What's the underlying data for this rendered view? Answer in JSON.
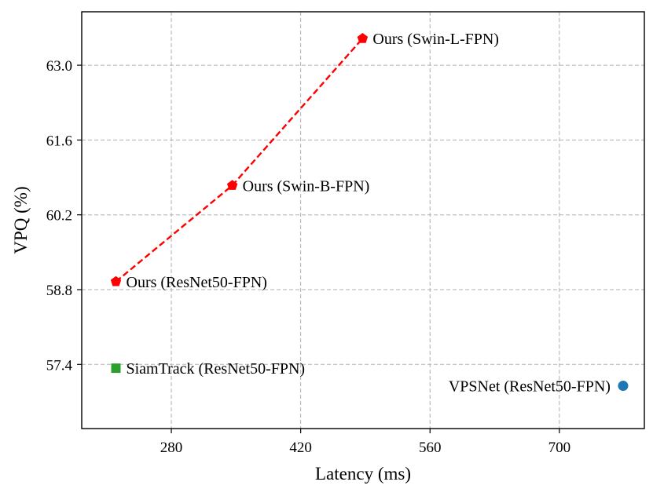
{
  "chart_data": {
    "type": "scatter",
    "xlabel": "Latency (ms)",
    "ylabel": "VPQ (%)",
    "xlim": [
      183,
      792
    ],
    "ylim": [
      56.2,
      64.0
    ],
    "xticks": [
      280,
      420,
      560,
      700
    ],
    "xtick_labels": [
      "280",
      "420",
      "560",
      "700"
    ],
    "yticks": [
      57.4,
      58.8,
      60.2,
      61.6,
      63.0
    ],
    "ytick_labels": [
      "57.4",
      "58.8",
      "60.2",
      "61.6",
      "63.0"
    ],
    "grid": true,
    "series": [
      {
        "name": "Ours",
        "marker": "pentagon",
        "line": "dashed",
        "color": "#ff0000",
        "points": [
          {
            "x": 220,
            "y": 58.95,
            "label": "Ours (ResNet50-FPN)"
          },
          {
            "x": 346,
            "y": 60.75,
            "label": "Ours (Swin-B-FPN)"
          },
          {
            "x": 487,
            "y": 63.5,
            "label": "Ours (Swin-L-FPN)"
          }
        ]
      },
      {
        "name": "SiamTrack",
        "marker": "square",
        "line": "none",
        "color": "#2ca02c",
        "points": [
          {
            "x": 220,
            "y": 57.33,
            "label": "SiamTrack (ResNet50-FPN)"
          }
        ]
      },
      {
        "name": "VPSNet",
        "marker": "circle",
        "line": "none",
        "color": "#1f77b4",
        "points": [
          {
            "x": 769,
            "y": 57.0,
            "label": "VPSNet (ResNet50-FPN)"
          }
        ]
      }
    ]
  }
}
